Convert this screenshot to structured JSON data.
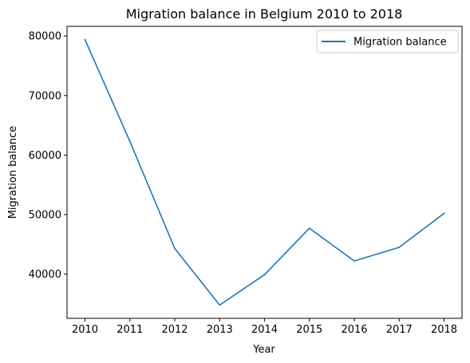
{
  "chart_data": {
    "type": "line",
    "title": "Migration balance in Belgium 2010 to 2018",
    "xlabel": "Year",
    "ylabel": "Migration balance",
    "x": [
      2010,
      2011,
      2012,
      2013,
      2014,
      2015,
      2016,
      2017,
      2018
    ],
    "series": [
      {
        "name": "Migration balance",
        "color": "#1f77b4",
        "values": [
          79400,
          62300,
          44300,
          34800,
          39900,
          47700,
          42200,
          44500,
          50200
        ]
      }
    ],
    "xticks": [
      "2010",
      "2011",
      "2012",
      "2013",
      "2014",
      "2015",
      "2016",
      "2017",
      "2018"
    ],
    "yticks": [
      "40000",
      "50000",
      "60000",
      "70000",
      "80000"
    ],
    "ytick_values": [
      40000,
      50000,
      60000,
      70000,
      80000
    ],
    "xlim": [
      2009.6,
      2018.4
    ],
    "ylim": [
      32570,
      81630
    ],
    "grid": false,
    "legend_position": "top-right"
  }
}
